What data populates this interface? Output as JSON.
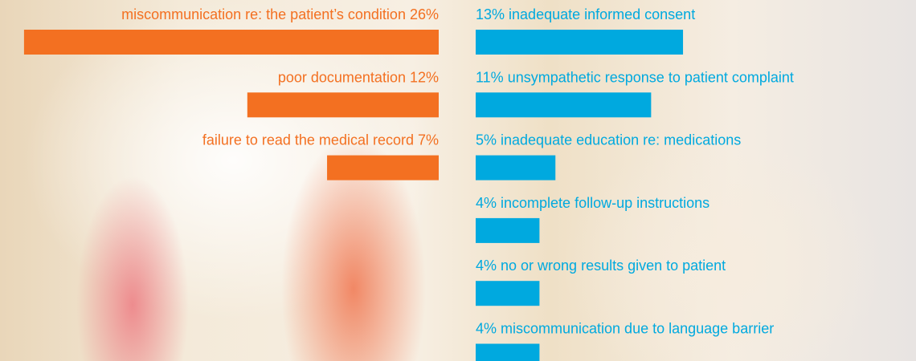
{
  "chart_data": [
    {
      "type": "bar",
      "side": "left",
      "color": "#f37021",
      "categories": [
        "miscommunication re: the patient’s condition",
        "poor documentation",
        "failure to read the medical record"
      ],
      "values": [
        26,
        12,
        7
      ],
      "value_labels": [
        "26%",
        "12%",
        "7%"
      ]
    },
    {
      "type": "bar",
      "side": "right",
      "color": "#00a9df",
      "categories": [
        "inadequate informed consent",
        "unsympathetic response to patient complaint",
        "inadequate education re: medications",
        "incomplete follow-up instructions",
        "no or wrong results given to patient",
        "miscommunication due to language barrier"
      ],
      "values": [
        13,
        11,
        5,
        4,
        4,
        4
      ],
      "value_labels": [
        "13%",
        "11%",
        "5%",
        "4%",
        "4%",
        "4%"
      ]
    }
  ]
}
